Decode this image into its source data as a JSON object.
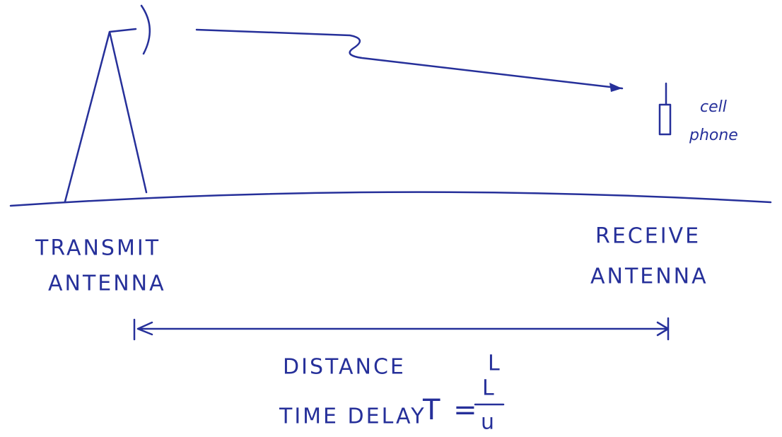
{
  "labels": {
    "transmit": [
      "TRANSMIT",
      "ANTENNA"
    ],
    "receive": [
      "RECEIVE",
      "ANTENNA"
    ],
    "phone": [
      "cell",
      "phone"
    ],
    "distance": [
      "DISTANCE",
      "L"
    ],
    "delay": "TIME DELAY",
    "formula": {
      "lhs": "T =",
      "numerator": "L",
      "denominator": "u"
    }
  }
}
